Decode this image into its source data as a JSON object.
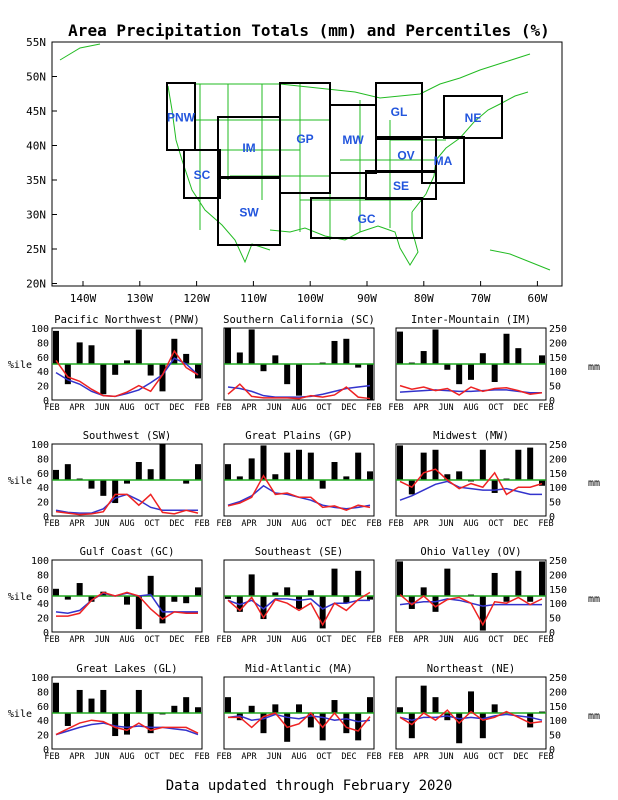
{
  "title": "Area Precipitation Totals (mm) and Percentiles (%)",
  "footer": "Data updated through February 2020",
  "colors": {
    "bars": "#000000",
    "percentile": "#3333cc",
    "total": "#ee2222",
    "median": "#22aa22",
    "map": "#22bb22",
    "region_label": "#2255dd"
  },
  "map": {
    "lat_ticks": [
      "55N",
      "50N",
      "45N",
      "40N",
      "35N",
      "30N",
      "25N",
      "20N"
    ],
    "lon_ticks": [
      "140W",
      "130W",
      "120W",
      "110W",
      "100W",
      "90W",
      "80W",
      "70W",
      "60W"
    ],
    "region_labels": [
      "PNW",
      "SC",
      "IM",
      "SW",
      "GP",
      "MW",
      "GL",
      "OV",
      "SE",
      "GC",
      "MA",
      "NE"
    ]
  },
  "axes": {
    "left_label": "%ile",
    "right_label": "mm",
    "left_ticks": [
      "0",
      "20",
      "40",
      "60",
      "80",
      "100"
    ],
    "right_ticks": [
      "0",
      "50",
      "100",
      "150",
      "200",
      "250"
    ],
    "x_ticks": [
      "FEB",
      "APR",
      "JUN",
      "AUG",
      "OCT",
      "DEC",
      "FEB"
    ]
  },
  "chart_data": [
    {
      "type": "bar",
      "title": "Pacific Northwest (PNW)",
      "x": [
        "FEB",
        "MAR",
        "APR",
        "MAY",
        "JUN",
        "JUL",
        "AUG",
        "SEP",
        "OCT",
        "NOV",
        "DEC",
        "JAN",
        "FEB"
      ],
      "series": [
        {
          "name": "bars",
          "values": [
            96,
            22,
            80,
            76,
            8,
            35,
            55,
            98,
            34,
            12,
            85,
            64,
            30
          ]
        },
        {
          "name": "percentile",
          "values": [
            38,
            28,
            22,
            12,
            6,
            5,
            9,
            14,
            24,
            35,
            58,
            50,
            35
          ]
        },
        {
          "name": "total",
          "values": [
            55,
            32,
            26,
            15,
            6,
            5,
            11,
            20,
            12,
            35,
            68,
            45,
            35
          ]
        }
      ]
    },
    {
      "type": "bar",
      "title": "Southern California (SC)",
      "x": [
        "FEB",
        "MAR",
        "APR",
        "MAY",
        "JUN",
        "JUL",
        "AUG",
        "SEP",
        "OCT",
        "NOV",
        "DEC",
        "JAN",
        "FEB"
      ],
      "series": [
        {
          "name": "bars",
          "values": [
            100,
            66,
            98,
            40,
            62,
            22,
            6,
            50,
            52,
            82,
            85,
            45,
            0
          ]
        },
        {
          "name": "percentile",
          "values": [
            18,
            16,
            12,
            6,
            4,
            4,
            4,
            5,
            8,
            12,
            16,
            18,
            20
          ]
        },
        {
          "name": "total",
          "values": [
            8,
            22,
            5,
            3,
            3,
            3,
            2,
            6,
            4,
            7,
            18,
            4,
            2
          ]
        }
      ]
    },
    {
      "type": "bar",
      "title": "Inter-Mountain (IM)",
      "x": [
        "FEB",
        "MAR",
        "APR",
        "MAY",
        "JUN",
        "JUL",
        "AUG",
        "SEP",
        "OCT",
        "NOV",
        "DEC",
        "JAN",
        "FEB"
      ],
      "series": [
        {
          "name": "bars",
          "values": [
            95,
            52,
            68,
            98,
            42,
            22,
            28,
            65,
            25,
            92,
            72,
            50,
            62
          ]
        },
        {
          "name": "percentile",
          "values": [
            11,
            12,
            13,
            14,
            13,
            12,
            12,
            13,
            14,
            14,
            12,
            10,
            10
          ]
        },
        {
          "name": "total",
          "values": [
            20,
            15,
            18,
            13,
            16,
            7,
            18,
            12,
            16,
            17,
            13,
            8,
            10
          ]
        }
      ]
    },
    {
      "type": "bar",
      "title": "Southwest (SW)",
      "x": [
        "FEB",
        "MAR",
        "APR",
        "MAY",
        "JUN",
        "JUL",
        "AUG",
        "SEP",
        "OCT",
        "NOV",
        "DEC",
        "JAN",
        "FEB"
      ],
      "series": [
        {
          "name": "bars",
          "values": [
            64,
            72,
            52,
            38,
            28,
            18,
            45,
            75,
            65,
            100,
            50,
            45,
            72
          ]
        },
        {
          "name": "percentile",
          "values": [
            8,
            5,
            4,
            4,
            10,
            25,
            30,
            22,
            12,
            8,
            8,
            8,
            8
          ]
        },
        {
          "name": "total",
          "values": [
            6,
            4,
            2,
            3,
            6,
            30,
            30,
            15,
            30,
            5,
            3,
            8,
            4
          ]
        }
      ]
    },
    {
      "type": "bar",
      "title": "Great Plains (GP)",
      "x": [
        "FEB",
        "MAR",
        "APR",
        "MAY",
        "JUN",
        "JUL",
        "AUG",
        "SEP",
        "OCT",
        "NOV",
        "DEC",
        "JAN",
        "FEB"
      ],
      "series": [
        {
          "name": "bars",
          "values": [
            72,
            55,
            80,
            98,
            58,
            88,
            92,
            88,
            38,
            75,
            55,
            88,
            62
          ]
        },
        {
          "name": "percentile",
          "values": [
            15,
            20,
            28,
            42,
            32,
            30,
            26,
            22,
            15,
            12,
            10,
            12,
            15
          ]
        },
        {
          "name": "total",
          "values": [
            14,
            18,
            26,
            56,
            30,
            32,
            26,
            26,
            12,
            14,
            8,
            15,
            12
          ]
        }
      ]
    },
    {
      "type": "bar",
      "title": "Midwest (MW)",
      "x": [
        "FEB",
        "MAR",
        "APR",
        "MAY",
        "JUN",
        "JUL",
        "AUG",
        "SEP",
        "OCT",
        "NOV",
        "DEC",
        "JAN",
        "FEB"
      ],
      "series": [
        {
          "name": "bars",
          "values": [
            98,
            30,
            88,
            92,
            58,
            62,
            48,
            92,
            32,
            52,
            92,
            95,
            42
          ]
        },
        {
          "name": "percentile",
          "values": [
            22,
            28,
            36,
            44,
            48,
            40,
            38,
            36,
            36,
            38,
            34,
            30,
            30
          ]
        },
        {
          "name": "total",
          "values": [
            48,
            40,
            60,
            65,
            50,
            38,
            45,
            40,
            60,
            30,
            40,
            40,
            45
          ]
        }
      ]
    },
    {
      "type": "bar",
      "title": "Gulf Coast (GC)",
      "x": [
        "FEB",
        "MAR",
        "APR",
        "MAY",
        "JUN",
        "JUL",
        "AUG",
        "SEP",
        "OCT",
        "NOV",
        "DEC",
        "JAN",
        "FEB"
      ],
      "series": [
        {
          "name": "bars",
          "values": [
            60,
            45,
            68,
            42,
            56,
            50,
            38,
            4,
            78,
            12,
            42,
            40,
            62
          ]
        },
        {
          "name": "percentile",
          "values": [
            28,
            26,
            30,
            44,
            54,
            50,
            54,
            50,
            52,
            28,
            28,
            28,
            28
          ]
        },
        {
          "name": "total",
          "values": [
            22,
            22,
            26,
            44,
            55,
            50,
            55,
            50,
            32,
            18,
            28,
            26,
            26
          ]
        }
      ]
    },
    {
      "type": "bar",
      "title": "Southeast (SE)",
      "x": [
        "FEB",
        "MAR",
        "APR",
        "MAY",
        "JUN",
        "JUL",
        "AUG",
        "SEP",
        "OCT",
        "NOV",
        "DEC",
        "JAN",
        "FEB"
      ],
      "series": [
        {
          "name": "bars",
          "values": [
            46,
            28,
            80,
            18,
            55,
            62,
            32,
            58,
            5,
            88,
            40,
            85,
            45
          ]
        },
        {
          "name": "percentile",
          "values": [
            44,
            38,
            44,
            32,
            46,
            46,
            44,
            46,
            32,
            40,
            40,
            44,
            44
          ]
        },
        {
          "name": "total",
          "values": [
            44,
            30,
            48,
            20,
            45,
            40,
            30,
            40,
            10,
            40,
            30,
            45,
            55
          ]
        }
      ]
    },
    {
      "type": "bar",
      "title": "Ohio Valley (OV)",
      "x": [
        "FEB",
        "MAR",
        "APR",
        "MAY",
        "JUN",
        "JUL",
        "AUG",
        "SEP",
        "OCT",
        "NOV",
        "DEC",
        "JAN",
        "FEB"
      ],
      "series": [
        {
          "name": "bars",
          "values": [
            98,
            32,
            62,
            28,
            88,
            50,
            52,
            2,
            82,
            42,
            85,
            42,
            98
          ]
        },
        {
          "name": "percentile",
          "values": [
            38,
            40,
            42,
            42,
            46,
            44,
            40,
            36,
            38,
            38,
            38,
            38,
            38
          ]
        },
        {
          "name": "total",
          "values": [
            52,
            38,
            50,
            35,
            45,
            48,
            40,
            10,
            42,
            40,
            48,
            38,
            46
          ]
        }
      ]
    },
    {
      "type": "bar",
      "title": "Great Lakes (GL)",
      "x": [
        "FEB",
        "MAR",
        "APR",
        "MAY",
        "JUN",
        "JUL",
        "AUG",
        "SEP",
        "OCT",
        "NOV",
        "DEC",
        "JAN",
        "FEB"
      ],
      "series": [
        {
          "name": "bars",
          "values": [
            92,
            32,
            82,
            70,
            82,
            18,
            20,
            82,
            22,
            48,
            60,
            72,
            58
          ]
        },
        {
          "name": "percentile",
          "values": [
            20,
            25,
            30,
            34,
            36,
            32,
            30,
            32,
            30,
            30,
            28,
            26,
            20
          ]
        },
        {
          "name": "total",
          "values": [
            20,
            28,
            36,
            40,
            38,
            30,
            26,
            36,
            26,
            30,
            30,
            30,
            22
          ]
        }
      ]
    },
    {
      "type": "bar",
      "title": "Mid-Atlantic (MA)",
      "x": [
        "FEB",
        "MAR",
        "APR",
        "MAY",
        "JUN",
        "JUL",
        "AUG",
        "SEP",
        "OCT",
        "NOV",
        "DEC",
        "JAN",
        "FEB"
      ],
      "series": [
        {
          "name": "bars",
          "values": [
            72,
            40,
            60,
            22,
            62,
            10,
            62,
            30,
            12,
            68,
            22,
            12,
            72
          ]
        },
        {
          "name": "percentile",
          "values": [
            44,
            46,
            40,
            42,
            48,
            44,
            42,
            46,
            44,
            40,
            42,
            38,
            40
          ]
        },
        {
          "name": "total",
          "values": [
            44,
            44,
            30,
            45,
            50,
            30,
            35,
            50,
            30,
            50,
            30,
            25,
            45
          ]
        }
      ]
    },
    {
      "type": "bar",
      "title": "Northeast (NE)",
      "x": [
        "FEB",
        "MAR",
        "APR",
        "MAY",
        "JUN",
        "JUL",
        "AUG",
        "SEP",
        "OCT",
        "NOV",
        "DEC",
        "JAN",
        "FEB"
      ],
      "series": [
        {
          "name": "bars",
          "values": [
            58,
            15,
            88,
            72,
            40,
            8,
            80,
            15,
            62,
            50,
            50,
            30,
            52
          ]
        },
        {
          "name": "percentile",
          "values": [
            44,
            40,
            44,
            44,
            46,
            42,
            44,
            42,
            46,
            48,
            46,
            44,
            40
          ]
        },
        {
          "name": "total",
          "values": [
            44,
            34,
            50,
            40,
            54,
            36,
            52,
            40,
            44,
            52,
            44,
            36,
            38
          ]
        }
      ]
    }
  ]
}
